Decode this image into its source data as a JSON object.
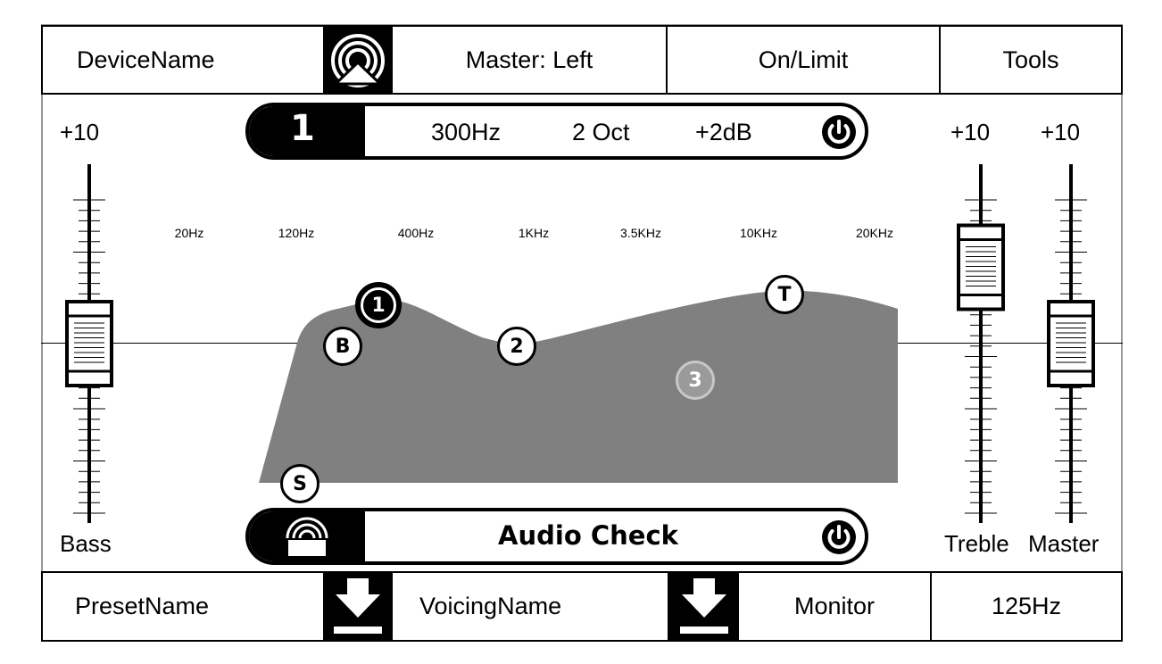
{
  "top_bar": {
    "device_name": "DeviceName",
    "icon": "wireless-signal-eject-icon",
    "master": "Master: Left",
    "status": "On/Limit",
    "tools": "Tools"
  },
  "band_bar": {
    "band_number": "1",
    "frequency": "300Hz",
    "width": "2 Oct",
    "gain": "+2dB",
    "icon": "power-icon"
  },
  "bass": {
    "max_label": "+10",
    "label": "Bass",
    "level": 0.5
  },
  "treble": {
    "max_label": "+10",
    "label": "Treble",
    "level": 0.75
  },
  "master": {
    "max_label": "+10",
    "label": "Master",
    "level": 0.5
  },
  "eq": {
    "freq_labels": [
      "20Hz",
      "120Hz",
      "400Hz",
      "1KHz",
      "3.5KHz",
      "10KHz",
      "20KHz"
    ],
    "nodes": [
      {
        "label": "1",
        "state": "selected"
      },
      {
        "label": "B",
        "state": "normal"
      },
      {
        "label": "2",
        "state": "normal"
      },
      {
        "label": "3",
        "state": "disabled"
      },
      {
        "label": "T",
        "state": "normal"
      },
      {
        "label": "S",
        "state": "normal"
      }
    ],
    "fill_color": "#808080"
  },
  "audio_check": {
    "icon": "wireless-signal-icon",
    "label": "Audio Check",
    "power_icon": "power-icon"
  },
  "bottom_bar": {
    "preset_name": "PresetName",
    "preset_icon": "download-icon",
    "voicing_name": "VoicingName",
    "voicing_icon": "download-icon",
    "monitor": "Monitor",
    "frequency": "125Hz"
  }
}
